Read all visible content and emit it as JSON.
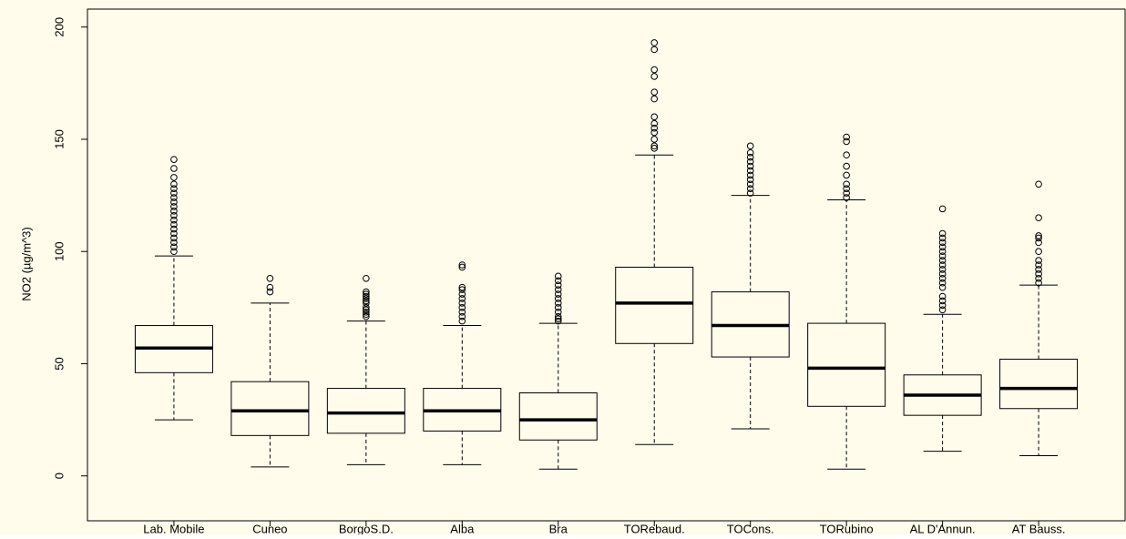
{
  "chart_data": {
    "type": "box",
    "y_label": "NO2 (µg/m^3)",
    "categories": [
      "Lab. Mobile",
      "Cuneo",
      "BorgoS.D.",
      "Alba",
      "Bra",
      "TORebaud.",
      "TOCons.",
      "TORubino",
      "AL D'Annun.",
      "AT Bauss."
    ],
    "boxes": [
      {
        "min": 25,
        "q1": 46,
        "median": 57,
        "q3": 67,
        "max": 98,
        "outliers": [
          100,
          102,
          104,
          106,
          108,
          110,
          112,
          114,
          116,
          118,
          120,
          122,
          124,
          126,
          128,
          130,
          133,
          137,
          141
        ]
      },
      {
        "min": 4,
        "q1": 18,
        "median": 29,
        "q3": 42,
        "max": 77,
        "outliers": [
          82,
          84,
          88
        ]
      },
      {
        "min": 5,
        "q1": 19,
        "median": 28,
        "q3": 39,
        "max": 69,
        "outliers": [
          71,
          72,
          73,
          74,
          75,
          77,
          78,
          79,
          80,
          81,
          82,
          88
        ]
      },
      {
        "min": 5,
        "q1": 20,
        "median": 29,
        "q3": 39,
        "max": 67,
        "outliers": [
          69,
          71,
          73,
          75,
          77,
          79,
          81,
          83,
          84,
          93,
          94
        ]
      },
      {
        "min": 3,
        "q1": 16,
        "median": 25,
        "q3": 37,
        "max": 68,
        "outliers": [
          69,
          70,
          71,
          73,
          75,
          77,
          79,
          81,
          83,
          85,
          87,
          89
        ]
      },
      {
        "min": 14,
        "q1": 59,
        "median": 77,
        "q3": 93,
        "max": 143,
        "outliers": [
          146,
          147,
          150,
          153,
          155,
          157,
          160,
          168,
          171,
          178,
          181,
          190,
          193
        ]
      },
      {
        "min": 21,
        "q1": 53,
        "median": 67,
        "q3": 82,
        "max": 125,
        "outliers": [
          126,
          128,
          130,
          132,
          134,
          136,
          138,
          140,
          142,
          144,
          147
        ]
      },
      {
        "min": 3,
        "q1": 31,
        "median": 48,
        "q3": 68,
        "max": 123,
        "outliers": [
          124,
          126,
          128,
          130,
          134,
          138,
          143,
          149,
          151
        ]
      },
      {
        "min": 11,
        "q1": 27,
        "median": 36,
        "q3": 45,
        "max": 72,
        "outliers": [
          74,
          76,
          78,
          80,
          84,
          86,
          88,
          90,
          92,
          94,
          96,
          98,
          100,
          102,
          104,
          106,
          108,
          119
        ]
      },
      {
        "min": 9,
        "q1": 30,
        "median": 39,
        "q3": 52,
        "max": 85,
        "outliers": [
          86,
          88,
          90,
          92,
          94,
          96,
          100,
          104,
          106,
          107,
          115,
          130
        ]
      }
    ],
    "ylim": [
      -20,
      208
    ],
    "yticks": [
      0,
      50,
      100,
      150,
      200
    ],
    "color": "#000000",
    "background": "#fffcec"
  }
}
